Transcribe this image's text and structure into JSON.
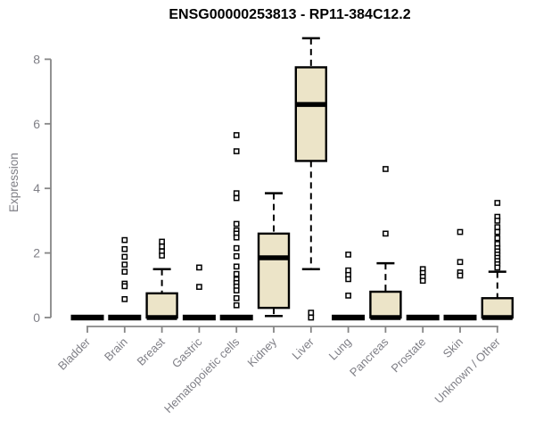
{
  "chart_data": {
    "type": "boxplot",
    "title": "ENSG00000253813 - RP11-384C12.2",
    "ylabel": "Expression",
    "xlabel": "",
    "yticks": [
      0,
      2,
      4,
      6,
      8
    ],
    "ylim": [
      0,
      8.7
    ],
    "grid": false,
    "legend": false,
    "categories": [
      "Bladder",
      "Brain",
      "Breast",
      "Gastric",
      "Hematopoietic cells",
      "Kidney",
      "Liver",
      "Lung",
      "Pancreas",
      "Prostate",
      "Skin",
      "Unknown / Other"
    ],
    "boxes": [
      {
        "category": "Bladder",
        "q1": 0,
        "median": 0,
        "q3": 0,
        "whisker_low": 0,
        "whisker_high": 0,
        "outliers": []
      },
      {
        "category": "Brain",
        "q1": 0,
        "median": 0,
        "q3": 0,
        "whisker_low": 0,
        "whisker_high": 0,
        "outliers": [
          2.4,
          2.12,
          1.88,
          1.64,
          1.42,
          1.05,
          0.97,
          0.57
        ]
      },
      {
        "category": "Breast",
        "q1": 0,
        "median": 0,
        "q3": 0.75,
        "whisker_low": 0,
        "whisker_high": 1.5,
        "outliers": [
          2.35,
          2.2,
          2.05,
          1.92
        ]
      },
      {
        "category": "Gastric",
        "q1": 0,
        "median": 0,
        "q3": 0,
        "whisker_low": 0,
        "whisker_high": 0,
        "outliers": [
          1.55,
          0.95
        ]
      },
      {
        "category": "Hematopoietic cells",
        "q1": 0,
        "median": 0,
        "q3": 0,
        "whisker_low": 0,
        "whisker_high": 0,
        "outliers": [
          5.65,
          5.15,
          3.85,
          3.7,
          2.9,
          2.7,
          2.6,
          2.48,
          2.15,
          1.9,
          1.58,
          1.35,
          1.18,
          1.07,
          0.96,
          0.84,
          0.6,
          0.38
        ]
      },
      {
        "category": "Kidney",
        "q1": 0.3,
        "median": 1.85,
        "q3": 2.6,
        "whisker_low": 0.05,
        "whisker_high": 3.85,
        "outliers": []
      },
      {
        "category": "Liver",
        "q1": 4.85,
        "median": 6.6,
        "q3": 7.75,
        "whisker_low": 1.5,
        "whisker_high": 8.65,
        "outliers": [
          0.15,
          0.0
        ]
      },
      {
        "category": "Lung",
        "q1": 0,
        "median": 0,
        "q3": 0,
        "whisker_low": 0,
        "whisker_high": 0,
        "outliers": [
          1.95,
          1.46,
          1.32,
          1.19,
          0.68
        ]
      },
      {
        "category": "Pancreas",
        "q1": 0,
        "median": 0,
        "q3": 0.8,
        "whisker_low": 0,
        "whisker_high": 1.68,
        "outliers": [
          4.6,
          2.6
        ]
      },
      {
        "category": "Prostate",
        "q1": 0,
        "median": 0,
        "q3": 0,
        "whisker_low": 0,
        "whisker_high": 0,
        "outliers": [
          1.5,
          1.38,
          1.26,
          1.14
        ]
      },
      {
        "category": "Skin",
        "q1": 0,
        "median": 0,
        "q3": 0,
        "whisker_low": 0,
        "whisker_high": 0,
        "outliers": [
          2.65,
          1.72,
          1.4,
          1.3
        ]
      },
      {
        "category": "Unknown / Other",
        "q1": 0,
        "median": 0,
        "q3": 0.6,
        "whisker_low": 0,
        "whisker_high": 1.42,
        "outliers": [
          3.55,
          3.12,
          3.0,
          2.8,
          2.65,
          2.46,
          2.28,
          2.15,
          2.05,
          1.95,
          1.85,
          1.75,
          1.65,
          1.55
        ]
      }
    ],
    "colors": {
      "box_fill": "#ece4c8",
      "box_stroke": "#000000",
      "outlier_fill": "#ffffff",
      "axis": "#868686",
      "muted_text": "#7f7f86",
      "title_text": "#000000",
      "background": "#ffffff"
    }
  }
}
